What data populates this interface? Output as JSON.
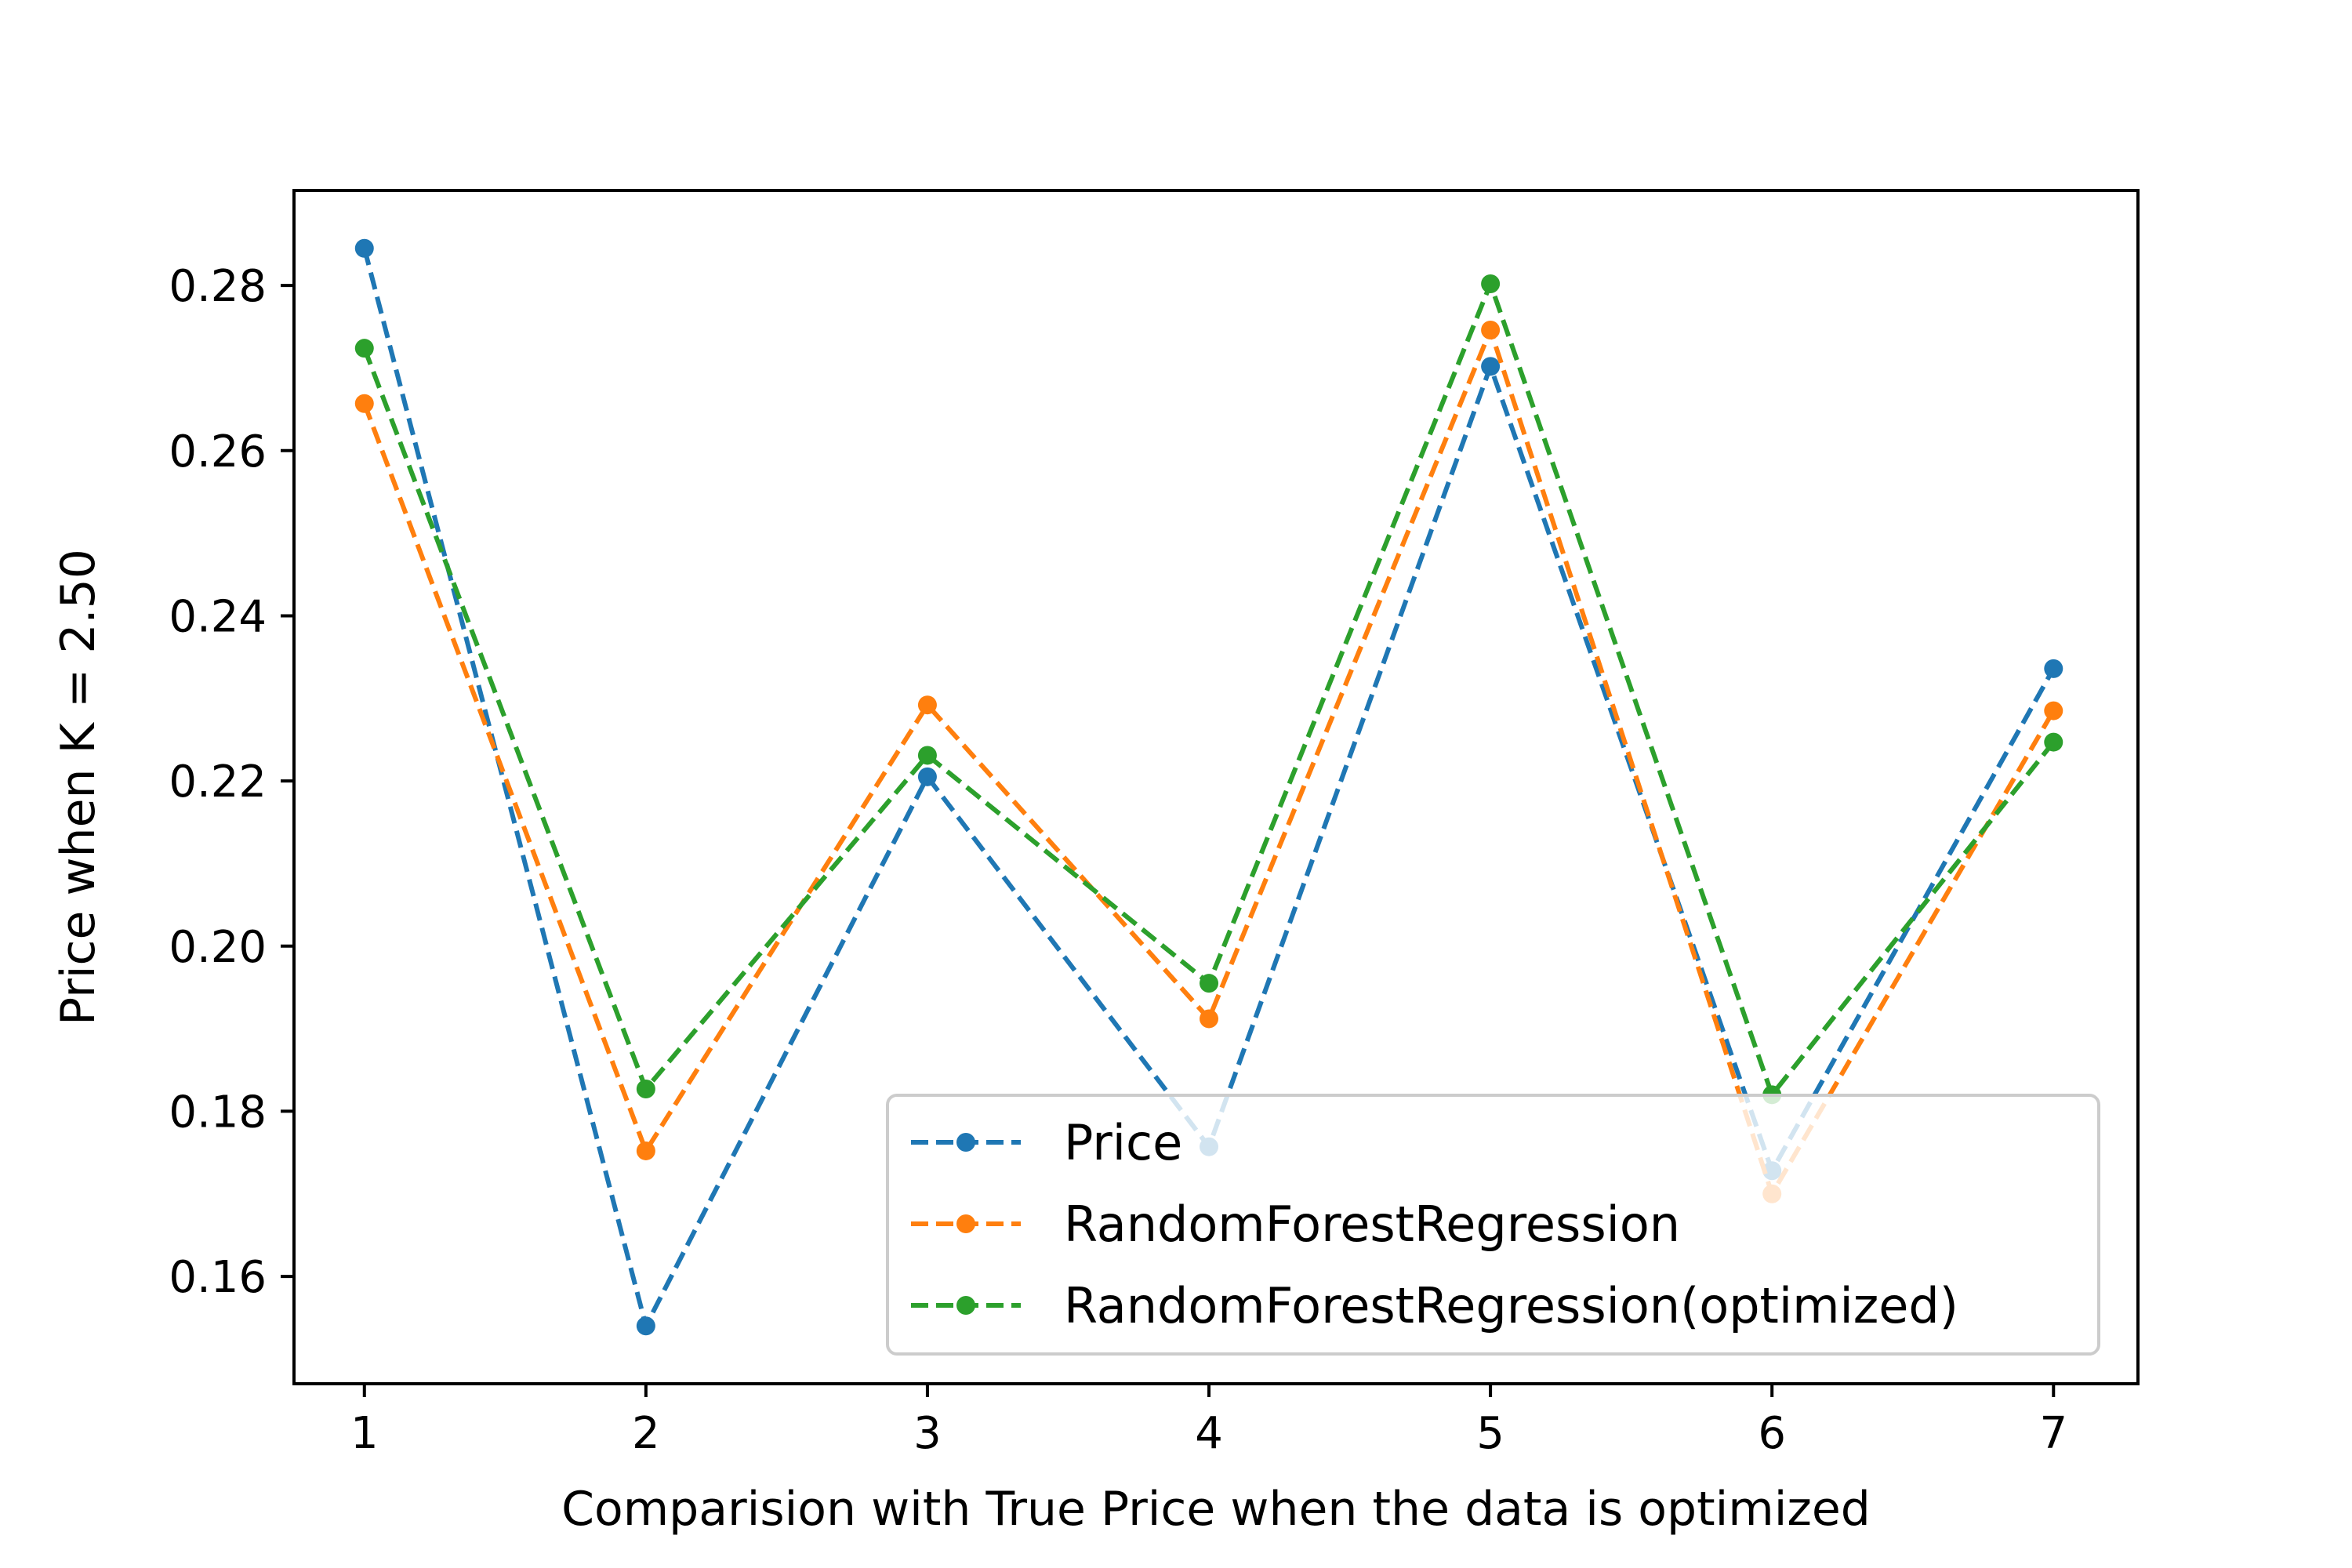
{
  "chart_data": {
    "type": "line",
    "title": "",
    "xlabel": "Comparision with True Price when the data is optimized",
    "ylabel": "Price when K = 2.50",
    "x": [
      1,
      2,
      3,
      4,
      5,
      6,
      7
    ],
    "xticks": [
      1,
      2,
      3,
      4,
      5,
      6,
      7
    ],
    "yticks": [
      0.16,
      0.18,
      0.2,
      0.22,
      0.24,
      0.26,
      0.28
    ],
    "xlim": [
      0.75,
      7.3
    ],
    "ylim": [
      0.147,
      0.2915
    ],
    "grid": false,
    "legend_position": "lower right",
    "series": [
      {
        "name": "Price",
        "color": "#1f77b4",
        "linestyle": "dashed",
        "marker": "circle",
        "values": [
          0.2845,
          0.154,
          0.2205,
          0.1757,
          0.2702,
          0.1728,
          0.2336
        ]
      },
      {
        "name": "RandomForestRegression",
        "color": "#ff7f0e",
        "linestyle": "dashed",
        "marker": "circle",
        "values": [
          0.2657,
          0.1752,
          0.2292,
          0.1912,
          0.2746,
          0.17,
          0.2285
        ]
      },
      {
        "name": "RandomForestRegression(optimized)",
        "color": "#2ca02c",
        "linestyle": "dashed",
        "marker": "circle",
        "values": [
          0.2724,
          0.1827,
          0.2231,
          0.1955,
          0.2802,
          0.182,
          0.2247
        ]
      }
    ]
  }
}
